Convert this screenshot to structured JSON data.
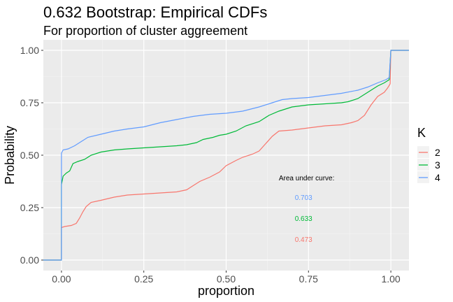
{
  "chart_data": {
    "type": "line",
    "title": "0.632 Bootstrap: Empirical CDFs",
    "subtitle": "For proportion of cluster aggreement",
    "xlabel": "proportion",
    "ylabel": "Probability",
    "xlim": [
      -0.055,
      1.055
    ],
    "ylim": [
      -0.05,
      1.05
    ],
    "x_ticks": [
      0,
      0.25,
      0.5,
      0.75,
      1
    ],
    "x_tick_labels": [
      "0.00",
      "0.25",
      "0.50",
      "0.75",
      "1.00"
    ],
    "y_ticks": [
      0,
      0.25,
      0.5,
      0.75,
      1
    ],
    "y_tick_labels": [
      "0.00",
      "0.25",
      "0.50",
      "0.75",
      "1.00"
    ],
    "grid": true,
    "legend": {
      "title": "K",
      "position": "right"
    },
    "series": [
      {
        "name": "2",
        "color": "#F8766D",
        "points": [
          [
            -0.055,
            0
          ],
          [
            0,
            0
          ],
          [
            0,
            0.155
          ],
          [
            0.01,
            0.16
          ],
          [
            0.03,
            0.165
          ],
          [
            0.045,
            0.175
          ],
          [
            0.055,
            0.2
          ],
          [
            0.065,
            0.23
          ],
          [
            0.075,
            0.255
          ],
          [
            0.09,
            0.275
          ],
          [
            0.12,
            0.285
          ],
          [
            0.16,
            0.3
          ],
          [
            0.2,
            0.31
          ],
          [
            0.25,
            0.315
          ],
          [
            0.3,
            0.32
          ],
          [
            0.35,
            0.325
          ],
          [
            0.38,
            0.335
          ],
          [
            0.4,
            0.355
          ],
          [
            0.42,
            0.375
          ],
          [
            0.45,
            0.395
          ],
          [
            0.48,
            0.42
          ],
          [
            0.5,
            0.45
          ],
          [
            0.53,
            0.475
          ],
          [
            0.55,
            0.49
          ],
          [
            0.58,
            0.505
          ],
          [
            0.6,
            0.52
          ],
          [
            0.62,
            0.555
          ],
          [
            0.64,
            0.59
          ],
          [
            0.66,
            0.615
          ],
          [
            0.7,
            0.62
          ],
          [
            0.75,
            0.63
          ],
          [
            0.8,
            0.64
          ],
          [
            0.85,
            0.645
          ],
          [
            0.88,
            0.655
          ],
          [
            0.9,
            0.665
          ],
          [
            0.92,
            0.69
          ],
          [
            0.94,
            0.74
          ],
          [
            0.96,
            0.78
          ],
          [
            0.98,
            0.8
          ],
          [
            0.99,
            0.82
          ],
          [
            0.998,
            0.84
          ],
          [
            1,
            1
          ],
          [
            1.055,
            1
          ]
        ]
      },
      {
        "name": "3",
        "color": "#00BA38",
        "points": [
          [
            -0.055,
            0
          ],
          [
            0,
            0
          ],
          [
            0,
            0.36
          ],
          [
            0.005,
            0.4
          ],
          [
            0.015,
            0.415
          ],
          [
            0.025,
            0.425
          ],
          [
            0.035,
            0.46
          ],
          [
            0.05,
            0.47
          ],
          [
            0.07,
            0.48
          ],
          [
            0.09,
            0.5
          ],
          [
            0.12,
            0.515
          ],
          [
            0.16,
            0.525
          ],
          [
            0.2,
            0.53
          ],
          [
            0.25,
            0.535
          ],
          [
            0.3,
            0.54
          ],
          [
            0.35,
            0.545
          ],
          [
            0.38,
            0.55
          ],
          [
            0.41,
            0.56
          ],
          [
            0.43,
            0.575
          ],
          [
            0.46,
            0.585
          ],
          [
            0.48,
            0.595
          ],
          [
            0.5,
            0.6
          ],
          [
            0.53,
            0.615
          ],
          [
            0.56,
            0.64
          ],
          [
            0.6,
            0.66
          ],
          [
            0.63,
            0.69
          ],
          [
            0.66,
            0.71
          ],
          [
            0.7,
            0.73
          ],
          [
            0.75,
            0.74
          ],
          [
            0.8,
            0.745
          ],
          [
            0.85,
            0.75
          ],
          [
            0.87,
            0.755
          ],
          [
            0.9,
            0.77
          ],
          [
            0.93,
            0.8
          ],
          [
            0.96,
            0.83
          ],
          [
            0.98,
            0.845
          ],
          [
            0.995,
            0.86
          ],
          [
            1,
            1
          ],
          [
            1.055,
            1
          ]
        ]
      },
      {
        "name": "4",
        "color": "#619CFF",
        "points": [
          [
            -0.055,
            0
          ],
          [
            0,
            0
          ],
          [
            0,
            0.51
          ],
          [
            0.005,
            0.525
          ],
          [
            0.02,
            0.53
          ],
          [
            0.04,
            0.545
          ],
          [
            0.06,
            0.565
          ],
          [
            0.08,
            0.585
          ],
          [
            0.12,
            0.6
          ],
          [
            0.16,
            0.615
          ],
          [
            0.2,
            0.625
          ],
          [
            0.25,
            0.635
          ],
          [
            0.3,
            0.655
          ],
          [
            0.35,
            0.67
          ],
          [
            0.4,
            0.685
          ],
          [
            0.45,
            0.695
          ],
          [
            0.5,
            0.7
          ],
          [
            0.55,
            0.71
          ],
          [
            0.6,
            0.73
          ],
          [
            0.64,
            0.75
          ],
          [
            0.67,
            0.765
          ],
          [
            0.7,
            0.77
          ],
          [
            0.75,
            0.775
          ],
          [
            0.8,
            0.785
          ],
          [
            0.85,
            0.795
          ],
          [
            0.9,
            0.81
          ],
          [
            0.93,
            0.825
          ],
          [
            0.96,
            0.845
          ],
          [
            0.985,
            0.86
          ],
          [
            0.995,
            0.87
          ],
          [
            1,
            1
          ],
          [
            1.055,
            1
          ]
        ]
      }
    ],
    "annotations": {
      "header": "Area under curve:",
      "items": [
        {
          "series": "4",
          "value": "0.703",
          "color": "#619CFF",
          "x": 0.7,
          "y": 0.3
        },
        {
          "series": "3",
          "value": "0.633",
          "color": "#00BA38",
          "x": 0.7,
          "y": 0.2
        },
        {
          "series": "2",
          "value": "0.473",
          "color": "#F8766D",
          "x": 0.7,
          "y": 0.1
        }
      ],
      "header_x": 0.66,
      "header_y": 0.39
    }
  }
}
